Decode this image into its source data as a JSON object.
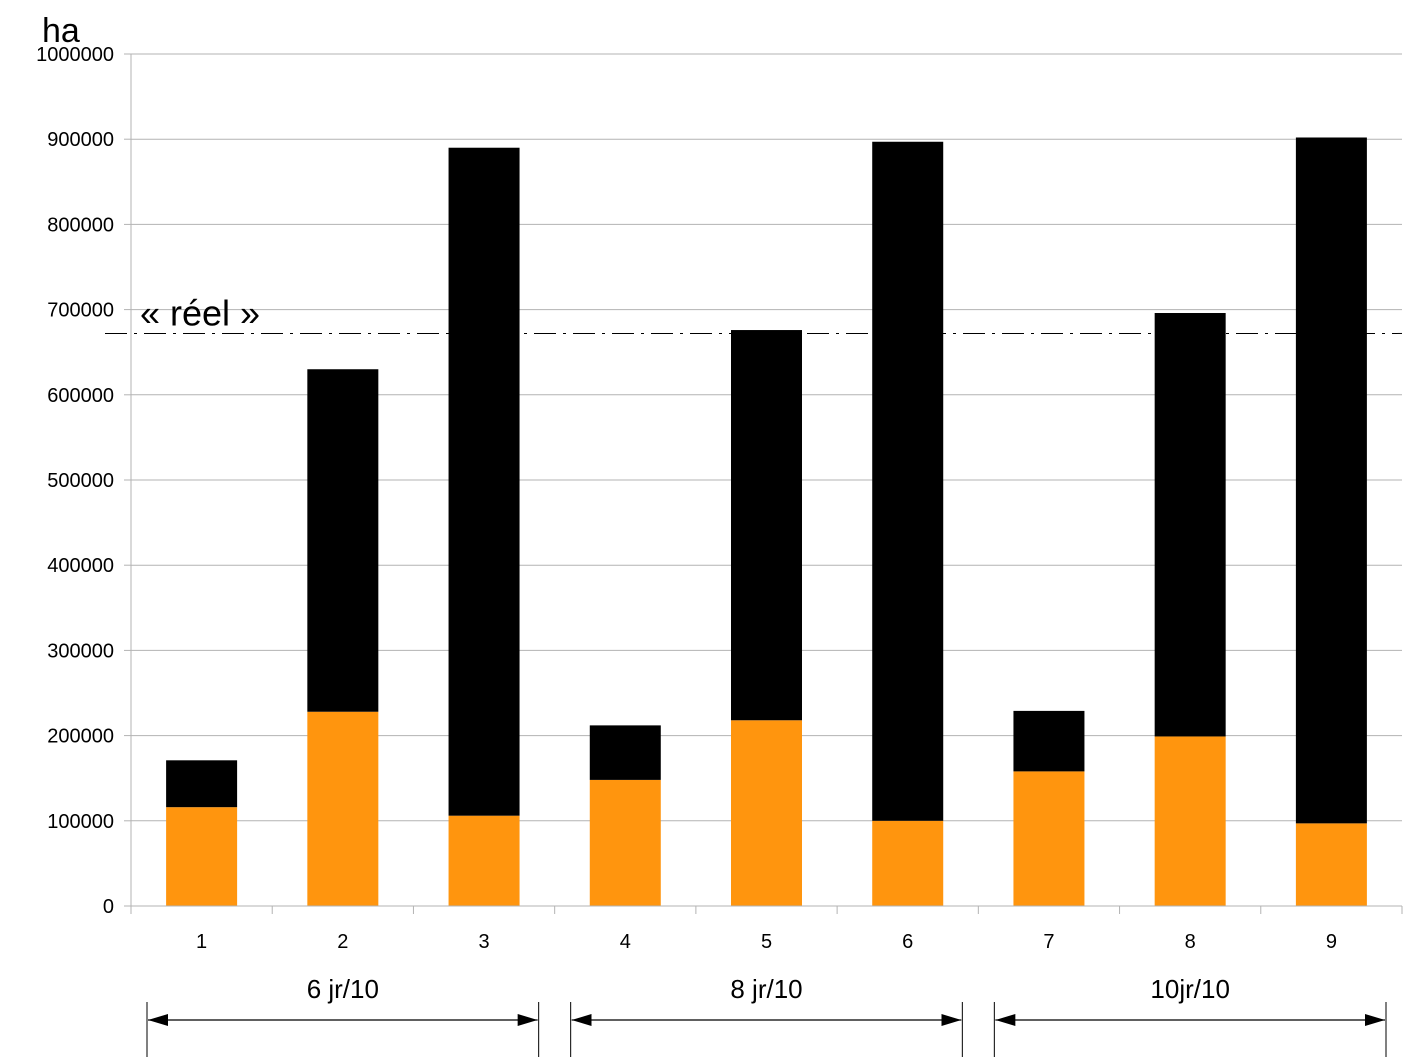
{
  "chart_data": {
    "type": "bar",
    "stacked": true,
    "categories": [
      "1",
      "2",
      "3",
      "4",
      "5",
      "6",
      "7",
      "8",
      "9"
    ],
    "series": [
      {
        "color": "#ff950e",
        "values": [
          116000,
          228000,
          106000,
          148000,
          218000,
          100000,
          158000,
          199000,
          97000
        ]
      },
      {
        "color": "#000000",
        "values": [
          55000,
          402000,
          784000,
          64000,
          458000,
          797000,
          71000,
          497000,
          805000
        ]
      }
    ],
    "ylim": [
      0,
      1000000
    ],
    "yticks": [
      0,
      100000,
      200000,
      300000,
      400000,
      500000,
      600000,
      700000,
      800000,
      900000,
      1000000
    ],
    "ylabel": "ha",
    "grid": true,
    "reference_line": {
      "label": "« réel »",
      "value": 672000
    },
    "groups": [
      {
        "label": "6 jr/10",
        "from": "1",
        "to": "3"
      },
      {
        "label": "8 jr/10",
        "from": "4",
        "to": "6"
      },
      {
        "label": "10jr/10",
        "from": "7",
        "to": "9"
      }
    ]
  }
}
